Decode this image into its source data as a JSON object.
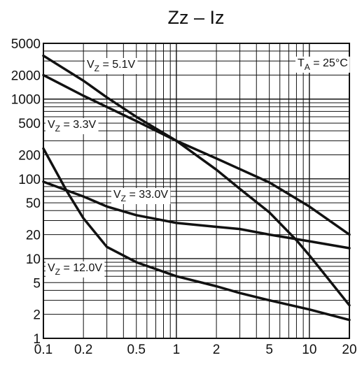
{
  "chart_data": {
    "type": "line",
    "title": "Zz – Iz",
    "xlabel": "",
    "ylabel": "",
    "xscale": "log",
    "yscale": "log",
    "xlim": [
      0.1,
      20
    ],
    "ylim": [
      1,
      5000
    ],
    "grid": true,
    "x_ticks": [
      "0.1",
      "0.2",
      "0.5",
      "1",
      "2",
      "5",
      "10",
      "20"
    ],
    "y_ticks": [
      "1",
      "2",
      "5",
      "10",
      "20",
      "50",
      "100",
      "200",
      "500",
      "1000",
      "2000",
      "5000"
    ],
    "annotation": "T_A = 25°C",
    "series": [
      {
        "name": "V_Z = 5.1V",
        "x": [
          0.1,
          0.2,
          0.3,
          0.5,
          1,
          2,
          3,
          5,
          8,
          10,
          20
        ],
        "y": [
          3500,
          1700,
          1050,
          600,
          300,
          130,
          75,
          38,
          17,
          11,
          2.6
        ]
      },
      {
        "name": "V_Z = 3.3V",
        "x": [
          0.1,
          0.2,
          0.5,
          1,
          2,
          5,
          10,
          20
        ],
        "y": [
          2000,
          1100,
          530,
          300,
          180,
          90,
          45,
          20
        ]
      },
      {
        "name": "V_Z = 33.0V",
        "x": [
          0.1,
          0.2,
          0.3,
          0.5,
          1,
          2,
          3,
          5,
          10,
          20
        ],
        "y": [
          92,
          60,
          45,
          35,
          28,
          25,
          23.5,
          20,
          16.5,
          13.5
        ]
      },
      {
        "name": "V_Z = 12.0V",
        "x": [
          0.1,
          0.15,
          0.2,
          0.3,
          0.5,
          1,
          2,
          3,
          5,
          10,
          20
        ],
        "y": [
          240,
          70,
          32,
          14,
          9,
          6,
          4.5,
          3.7,
          3.0,
          2.3,
          1.7
        ]
      }
    ],
    "labels": [
      {
        "series": 0,
        "sub": "Z",
        "text": "V_Z = 5.1V"
      },
      {
        "series": 1,
        "sub": "Z",
        "text": "V_Z = 3.3V"
      },
      {
        "series": 2,
        "sub": "Z",
        "text": "V_Z = 33.0V"
      },
      {
        "series": 3,
        "sub": "Z",
        "text": "V_Z = 12.0V"
      }
    ]
  }
}
